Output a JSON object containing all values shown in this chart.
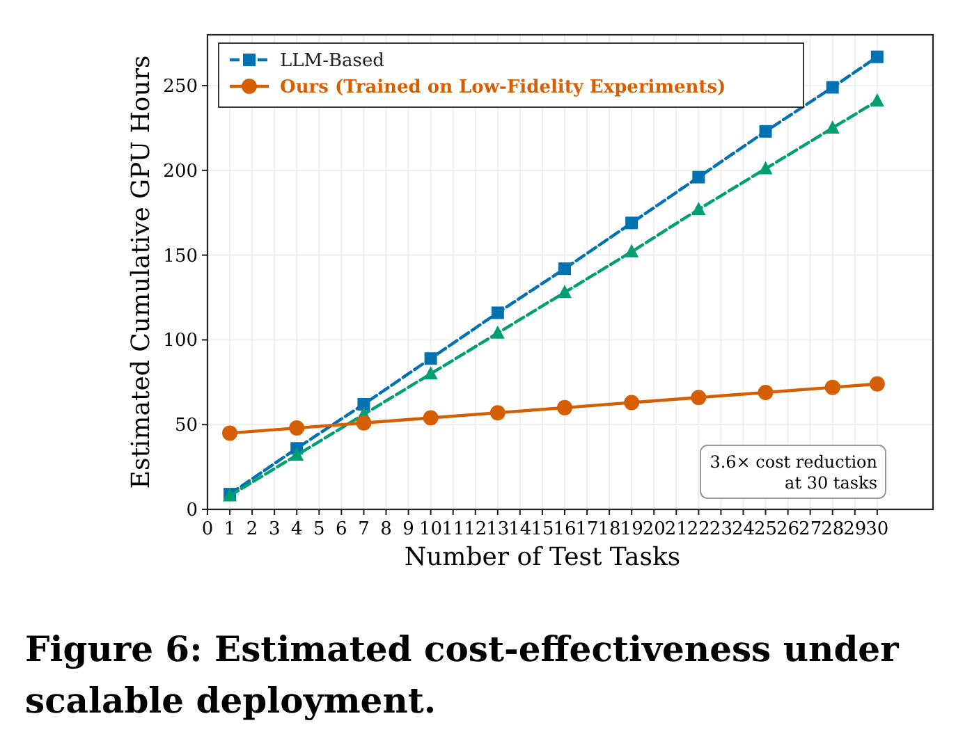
{
  "chart_data": {
    "type": "line",
    "title": "Figure 6: Estimated cost-effectiveness under scalable deployment.",
    "xlabel": "Number of Test Tasks",
    "ylabel": "Estimated Cumulative GPU Hours",
    "x": [
      1,
      4,
      7,
      10,
      13,
      16,
      19,
      22,
      25,
      28,
      30
    ],
    "series": [
      {
        "name": "LLM-Based",
        "color": "#0072b2",
        "marker": "square",
        "line_style": "dashed",
        "values": [
          9,
          36,
          62,
          89,
          116,
          142,
          169,
          196,
          223,
          249,
          267
        ]
      },
      {
        "color": "#009e73",
        "marker": "triangle",
        "line_style": "dashed",
        "values": [
          8,
          32,
          56,
          80,
          104,
          128,
          152,
          177,
          201,
          225,
          241
        ]
      },
      {
        "name": "Ours (Trained on Low-Fidelity Experiments)",
        "color": "#d55e00",
        "marker": "circle",
        "line_style": "solid",
        "values": [
          45,
          48,
          51,
          54,
          57,
          60,
          63,
          66,
          69,
          72,
          74
        ]
      }
    ],
    "xlim": [
      0,
      32.5
    ],
    "xticks": [
      0,
      1,
      2,
      3,
      4,
      5,
      6,
      7,
      8,
      9,
      10,
      11,
      12,
      13,
      14,
      15,
      16,
      17,
      18,
      19,
      20,
      21,
      22,
      23,
      24,
      25,
      26,
      27,
      28,
      29,
      30
    ],
    "ylim": [
      0,
      280
    ],
    "yticks": [
      0,
      50,
      100,
      150,
      200,
      250
    ],
    "grid": true,
    "legend": "top left",
    "annotations": [
      "3.6× cost reduction\nat 30 tasks"
    ]
  }
}
